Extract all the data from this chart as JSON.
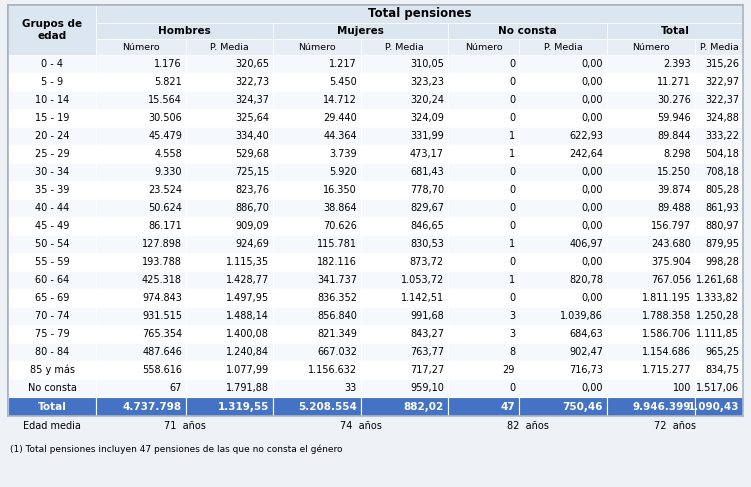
{
  "title": "Total pensiones",
  "rows": [
    [
      "0 - 4",
      "1.176",
      "320,65",
      "1.217",
      "310,05",
      "0",
      "0,00",
      "2.393",
      "315,26"
    ],
    [
      "5 - 9",
      "5.821",
      "322,73",
      "5.450",
      "323,23",
      "0",
      "0,00",
      "11.271",
      "322,97"
    ],
    [
      "10 - 14",
      "15.564",
      "324,37",
      "14.712",
      "320,24",
      "0",
      "0,00",
      "30.276",
      "322,37"
    ],
    [
      "15 - 19",
      "30.506",
      "325,64",
      "29.440",
      "324,09",
      "0",
      "0,00",
      "59.946",
      "324,88"
    ],
    [
      "20 - 24",
      "45.479",
      "334,40",
      "44.364",
      "331,99",
      "1",
      "622,93",
      "89.844",
      "333,22"
    ],
    [
      "25 - 29",
      "4.558",
      "529,68",
      "3.739",
      "473,17",
      "1",
      "242,64",
      "8.298",
      "504,18"
    ],
    [
      "30 - 34",
      "9.330",
      "725,15",
      "5.920",
      "681,43",
      "0",
      "0,00",
      "15.250",
      "708,18"
    ],
    [
      "35 - 39",
      "23.524",
      "823,76",
      "16.350",
      "778,70",
      "0",
      "0,00",
      "39.874",
      "805,28"
    ],
    [
      "40 - 44",
      "50.624",
      "886,70",
      "38.864",
      "829,67",
      "0",
      "0,00",
      "89.488",
      "861,93"
    ],
    [
      "45 - 49",
      "86.171",
      "909,09",
      "70.626",
      "846,65",
      "0",
      "0,00",
      "156.797",
      "880,97"
    ],
    [
      "50 - 54",
      "127.898",
      "924,69",
      "115.781",
      "830,53",
      "1",
      "406,97",
      "243.680",
      "879,95"
    ],
    [
      "55 - 59",
      "193.788",
      "1.115,35",
      "182.116",
      "873,72",
      "0",
      "0,00",
      "375.904",
      "998,28"
    ],
    [
      "60 - 64",
      "425.318",
      "1.428,77",
      "341.737",
      "1.053,72",
      "1",
      "820,78",
      "767.056",
      "1.261,68"
    ],
    [
      "65 - 69",
      "974.843",
      "1.497,95",
      "836.352",
      "1.142,51",
      "0",
      "0,00",
      "1.811.195",
      "1.333,82"
    ],
    [
      "70 - 74",
      "931.515",
      "1.488,14",
      "856.840",
      "991,68",
      "3",
      "1.039,86",
      "1.788.358",
      "1.250,28"
    ],
    [
      "75 - 79",
      "765.354",
      "1.400,08",
      "821.349",
      "843,27",
      "3",
      "684,63",
      "1.586.706",
      "1.111,85"
    ],
    [
      "80 - 84",
      "487.646",
      "1.240,84",
      "667.032",
      "763,77",
      "8",
      "902,47",
      "1.154.686",
      "965,25"
    ],
    [
      "85 y más",
      "558.616",
      "1.077,99",
      "1.156.632",
      "717,27",
      "29",
      "716,73",
      "1.715.277",
      "834,75"
    ],
    [
      "No consta",
      "67",
      "1.791,88",
      "33",
      "959,10",
      "0",
      "0,00",
      "100",
      "1.517,06"
    ]
  ],
  "total_row": [
    "Total",
    "4.737.798",
    "1.319,55",
    "5.208.554",
    "882,02",
    "47",
    "750,46",
    "9.946.399",
    "1.090,43"
  ],
  "edad_media": [
    "Edad media",
    "71",
    "74",
    "82",
    "72"
  ],
  "footnote": "(1) Total pensiones incluyen 47 pensiones de las que no consta el género",
  "bg_color": "#eef2f7",
  "header_bg": "#cdd9e8",
  "subheader_bg": "#dce6f1",
  "col_header_bg": "#e8eef5",
  "total_bg": "#4472c4",
  "total_text": "#ffffff",
  "row_bg_even": "#f5f8fc",
  "row_bg_odd": "#ffffff",
  "border_color": "#ffffff",
  "outer_border": "#aab4c0"
}
